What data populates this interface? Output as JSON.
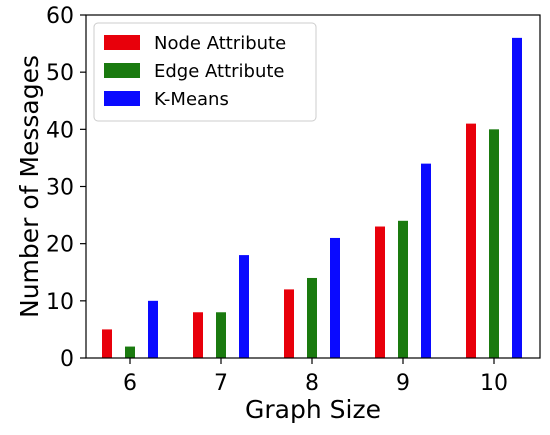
{
  "chart_data": {
    "type": "bar",
    "categories": [
      "6",
      "7",
      "8",
      "9",
      "10"
    ],
    "series": [
      {
        "name": "Node Attribute",
        "color": "#e8000b",
        "values": [
          5,
          8,
          12,
          23,
          41
        ]
      },
      {
        "name": "Edge Attribute",
        "color": "#1a7a0f",
        "values": [
          2,
          8,
          14,
          24,
          40
        ]
      },
      {
        "name": "K-Means",
        "color": "#0a0aff",
        "values": [
          10,
          18,
          21,
          34,
          56
        ]
      }
    ],
    "xlabel": "Graph Size",
    "ylabel": "Number of Messages",
    "ylim": [
      0,
      60
    ],
    "yticks": [
      0,
      10,
      20,
      30,
      40,
      50,
      60
    ],
    "grid": false,
    "legend_position": "top-left"
  }
}
